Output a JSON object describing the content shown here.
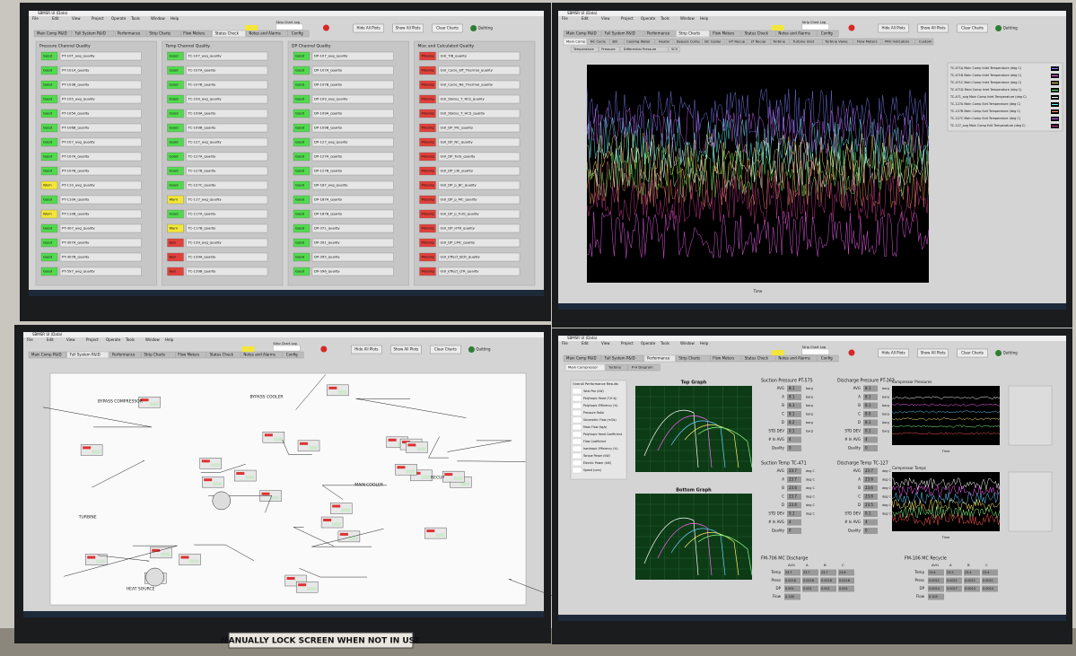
{
  "window_title": "SBMSR UI (Data)",
  "menu": [
    "File",
    "Edit",
    "View",
    "Project",
    "Operate",
    "Tools",
    "Window",
    "Help"
  ],
  "tabs": [
    "Main Comp P&ID",
    "Full System P&ID",
    "Performance",
    "Strip Charts",
    "Flow Meters",
    "Status Check",
    "Notes and Alarms",
    "Config"
  ],
  "buttons": [
    "Hide All Plots",
    "Show All Plots",
    "Clear Charts",
    "Quitting"
  ],
  "strip_chart_log": "Strip Chart Log",
  "sign": "MANUALLY LOCK SCREEN WHEN NOT IN USE",
  "screen1": {
    "panels": [
      {
        "title": "Pressure Channel Quality",
        "items": [
          {
            "name": "PT-10T_avg_quality",
            "status": "Good",
            "color": "#53d94f"
          },
          {
            "name": "PT-101A_quality",
            "status": "Good",
            "color": "#53d94f"
          },
          {
            "name": "PT-103B_quality",
            "status": "Good",
            "color": "#53d94f"
          },
          {
            "name": "PT-105_avg_quality",
            "status": "Good",
            "color": "#53d94f"
          },
          {
            "name": "PT-105A_quality",
            "status": "Good",
            "color": "#53d94f"
          },
          {
            "name": "PT-106B_quality",
            "status": "Good",
            "color": "#53d94f"
          },
          {
            "name": "PT-107_avg_quality",
            "status": "Good",
            "color": "#53d94f"
          },
          {
            "name": "PT-107A_quality",
            "status": "Good",
            "color": "#53d94f"
          },
          {
            "name": "PT-107B_quality",
            "status": "Good",
            "color": "#53d94f"
          },
          {
            "name": "PT-110_avg_quality",
            "status": "Warn",
            "color": "#f2e63a"
          },
          {
            "name": "PT-110A_quality",
            "status": "Good",
            "color": "#53d94f"
          },
          {
            "name": "PT-110B_quality",
            "status": "Warn",
            "color": "#f2e63a"
          },
          {
            "name": "PT-307_avg_quality",
            "status": "Good",
            "color": "#53d94f"
          },
          {
            "name": "PT-307A_quality",
            "status": "Good",
            "color": "#53d94f"
          },
          {
            "name": "PT-307B_quality",
            "status": "Good",
            "color": "#53d94f"
          },
          {
            "name": "PT-597_avg_quality",
            "status": "Good",
            "color": "#53d94f"
          }
        ]
      },
      {
        "title": "Temp Channel Quality",
        "items": [
          {
            "name": "TC-107_avg_quality",
            "status": "Good",
            "color": "#53d94f"
          },
          {
            "name": "TC-107A_quality",
            "status": "Good",
            "color": "#53d94f"
          },
          {
            "name": "TC-107B_quality",
            "status": "Good",
            "color": "#53d94f"
          },
          {
            "name": "TC-109_avg_quality",
            "status": "Good",
            "color": "#53d94f"
          },
          {
            "name": "TC-109A_quality",
            "status": "Good",
            "color": "#53d94f"
          },
          {
            "name": "TC-109B_quality",
            "status": "Good",
            "color": "#53d94f"
          },
          {
            "name": "TC-127_avg_quality",
            "status": "Good",
            "color": "#53d94f"
          },
          {
            "name": "TC-127A_quality",
            "status": "Good",
            "color": "#53d94f"
          },
          {
            "name": "TC-127B_quality",
            "status": "Good",
            "color": "#53d94f"
          },
          {
            "name": "TC-127C_quality",
            "status": "Good",
            "color": "#53d94f"
          },
          {
            "name": "TC-117_avg_quality",
            "status": "Warn",
            "color": "#f2e63a"
          },
          {
            "name": "TC-117A_quality",
            "status": "Good",
            "color": "#53d94f"
          },
          {
            "name": "TC-117B_quality",
            "status": "Warn",
            "color": "#f2e63a"
          },
          {
            "name": "TC-139_avg_quality",
            "status": "Bad",
            "color": "#e0413a"
          },
          {
            "name": "TC-139A_quality",
            "status": "Bad",
            "color": "#e0413a"
          },
          {
            "name": "TC-139B_quality",
            "status": "Bad",
            "color": "#e0413a"
          }
        ]
      },
      {
        "title": "DP Channel Quality",
        "items": [
          {
            "name": "DP-107_avg_quality",
            "status": "Good",
            "color": "#53d94f"
          },
          {
            "name": "DP-107A_quality",
            "status": "Good",
            "color": "#53d94f"
          },
          {
            "name": "DP-107B_quality",
            "status": "Good",
            "color": "#53d94f"
          },
          {
            "name": "DP-109_avg_quality",
            "status": "Good",
            "color": "#53d94f"
          },
          {
            "name": "DP-109A_quality",
            "status": "Good",
            "color": "#53d94f"
          },
          {
            "name": "DP-109B_quality",
            "status": "Good",
            "color": "#53d94f"
          },
          {
            "name": "DP-127_avg_quality",
            "status": "Good",
            "color": "#53d94f"
          },
          {
            "name": "DP-127A_quality",
            "status": "Good",
            "color": "#53d94f"
          },
          {
            "name": "DP-127B_quality",
            "status": "Good",
            "color": "#53d94f"
          },
          {
            "name": "DP-187_avg_quality",
            "status": "Good",
            "color": "#53d94f"
          },
          {
            "name": "DP-187A_quality",
            "status": "Good",
            "color": "#53d94f"
          },
          {
            "name": "DP-187B_quality",
            "status": "Good",
            "color": "#53d94f"
          },
          {
            "name": "DP-371_quality",
            "status": "Good",
            "color": "#53d94f"
          },
          {
            "name": "DP-391_quality",
            "status": "Good",
            "color": "#53d94f"
          },
          {
            "name": "DP-395_quality",
            "status": "Good",
            "color": "#53d94f"
          },
          {
            "name": "DP-396_quality",
            "status": "Good",
            "color": "#53d94f"
          }
        ]
      },
      {
        "title": "Misc and Calculated Quality",
        "items": [
          {
            "name": "GUI_TIB_quality",
            "status": "Missing",
            "color": "#e0413a"
          },
          {
            "name": "GUI_Cycle_Eff_Thermal_quality",
            "status": "Missing",
            "color": "#e0413a"
          },
          {
            "name": "GUI_Cycle_NE_Thermal_quality",
            "status": "Missing",
            "color": "#e0413a"
          },
          {
            "name": "GUI_Status_T_RCS_quality",
            "status": "Missing",
            "color": "#e0413a"
          },
          {
            "name": "GUI_Status_T_HCS_quality",
            "status": "Missing",
            "color": "#e0413a"
          },
          {
            "name": "GUI_DP_MC_quality",
            "status": "Missing",
            "color": "#e0413a"
          },
          {
            "name": "GUI_DP_NC_quality",
            "status": "Missing",
            "color": "#e0413a"
          },
          {
            "name": "GUI_DP_Turb_quality",
            "status": "Missing",
            "color": "#e0413a"
          },
          {
            "name": "GUI_DP_LRI_quality",
            "status": "Missing",
            "color": "#e0413a"
          },
          {
            "name": "GUI_DP_p_BC_quality",
            "status": "Missing",
            "color": "#e0413a"
          },
          {
            "name": "GUI_DP_p_MC_quality",
            "status": "Missing",
            "color": "#e0413a"
          },
          {
            "name": "GUI_DP_p_Turb_quality",
            "status": "Missing",
            "color": "#e0413a"
          },
          {
            "name": "GUI_DP_HTR_quality",
            "status": "Missing",
            "color": "#e0413a"
          },
          {
            "name": "GUI_DP_LMC_quality",
            "status": "Missing",
            "color": "#e0413a"
          },
          {
            "name": "GUI_Effect_BCR_quality",
            "status": "Missing",
            "color": "#e0413a"
          },
          {
            "name": "GUI_Effect_LTR_quality",
            "status": "Missing",
            "color": "#e0413a"
          }
        ]
      }
    ]
  },
  "screen2": {
    "subtabs": [
      "Main Comp",
      "NC Cycle",
      "Bill",
      "Cooling Water",
      "Heater",
      "Bypass Comp",
      "BC Cooler",
      "HT Recup",
      "LT Recup",
      "Turbine",
      "Turbine Inlet",
      "Turbine Valve",
      "Flow Meters",
      "PRV Indicators",
      "Custom"
    ],
    "views": [
      "Temperature",
      "Pressure",
      "Differential Pressure",
      "SCV"
    ],
    "x_label": "Time",
    "legend": [
      {
        "name": "TC-471A Main Comp Inlet Temperature (deg C)",
        "color": "#7f7fff"
      },
      {
        "name": "TC-471B Main Comp Inlet Temperature (deg C)",
        "color": "#ff66ff"
      },
      {
        "name": "TC-471C Main Comp Inlet Temperature (deg C)",
        "color": "#ffe066"
      },
      {
        "name": "TC-471D Main Comp Inlet Temperature (deg C)",
        "color": "#66ff66"
      },
      {
        "name": "TC-471_avg Main Comp Inlet Temperature (deg C)",
        "color": "#ffffff"
      },
      {
        "name": "TC-127A Main Comp Exit Temperature (deg C)",
        "color": "#66ffff"
      },
      {
        "name": "TC-127B Main Comp Exit Temperature (deg C)",
        "color": "#ff9966"
      },
      {
        "name": "TC-127C Main Comp Exit Temperature (deg C)",
        "color": "#cc66ff"
      },
      {
        "name": "TC-127_avg Main Comp Exit Temperature (deg C)",
        "color": "#e040a0"
      }
    ]
  },
  "screen3": {
    "labels": [
      "BYPASS COMPRESSOR",
      "BYPASS COOLER",
      "TURBINE",
      "MAIN COOLER",
      "RECUP",
      "HEAT SOURCE"
    ]
  },
  "screen4": {
    "subtabs": [
      "Main Compressor",
      "Turbine",
      "P-H Diagram"
    ],
    "perf_title": "Overall Performance Results",
    "perf_items": [
      "Total Pwr (kW)",
      "Polytropic Head (T-H kJ)",
      "Polytropic Efficiency (%)",
      "Pressure Ratio",
      "Volumetric Flow (m3/s)",
      "Mass Flow (kg/s)",
      "Polytropic Head Coefficient",
      "Flow Coefficient",
      "Isentropic Efficiency (%)",
      "Torque Power (kW)",
      "Electric Power (kW)",
      "Speed (rpm)"
    ],
    "graphs": [
      "Top Graph",
      "Bottom Graph"
    ],
    "stat_blocks": [
      {
        "title": "Suction Pressure PT-575",
        "unit": "barg",
        "rows": [
          [
            "AVG",
            "8.1"
          ],
          [
            "A",
            "8.1"
          ],
          [
            "B",
            "8.1"
          ],
          [
            "C",
            "8.1"
          ],
          [
            "D",
            "8.2"
          ],
          [
            "STD DEV",
            "0.1"
          ],
          [
            "# In AVG",
            "4"
          ],
          [
            "Quality",
            "0"
          ]
        ]
      },
      {
        "title": "Discharge Pressure PT-363",
        "unit": "barg",
        "rows": [
          [
            "AVG",
            "8.1"
          ],
          [
            "A",
            "8.1"
          ],
          [
            "B",
            "8.1"
          ],
          [
            "C",
            "8.0"
          ],
          [
            "D",
            "8.1"
          ],
          [
            "STD DEV",
            "0.1"
          ],
          [
            "# In AVG",
            "4"
          ],
          [
            "Quality",
            "0"
          ]
        ]
      },
      {
        "title": "Suction Temp TC-471",
        "unit": "deg C",
        "rows": [
          [
            "AVG",
            "23.7"
          ],
          [
            "A",
            "23.7"
          ],
          [
            "B",
            "23.6"
          ],
          [
            "C",
            "23.7"
          ],
          [
            "D",
            "23.6"
          ],
          [
            "STD DEV",
            "0.1"
          ],
          [
            "# In AVG",
            "4"
          ],
          [
            "Quality",
            "0"
          ]
        ]
      },
      {
        "title": "Discharge Temp TC-127",
        "unit": "deg C",
        "rows": [
          [
            "AVG",
            "23.7"
          ],
          [
            "A",
            "23.6"
          ],
          [
            "B",
            "23.6"
          ],
          [
            "C",
            "23.6"
          ],
          [
            "D",
            "23.5"
          ],
          [
            "STD DEV",
            "0.1"
          ],
          [
            "# In AVG",
            "4"
          ],
          [
            "Quality",
            "0"
          ]
        ]
      }
    ],
    "flow_blocks": [
      {
        "title": "FM-706 MC Discharge",
        "header": [
          "AVG",
          "A",
          "B",
          "C"
        ],
        "rows": [
          [
            "Temp",
            "23.7",
            "23.7",
            "23.7",
            "23.8"
          ],
          [
            "Press",
            "0.0218",
            "0.0218",
            "0.0218",
            "0.0218"
          ],
          [
            "DP",
            "0.001",
            "0.001",
            "0.001",
            "0.001"
          ],
          [
            "Flow",
            "0.138"
          ]
        ]
      },
      {
        "title": "FM-106 MC Recycle",
        "header": [
          "AVG",
          "A",
          "B",
          "C"
        ],
        "rows": [
          [
            "Temp",
            "23.4",
            "23.5",
            "23.4",
            "23.4"
          ],
          [
            "Press",
            "0.0021",
            "0.0021",
            "0.0021",
            "0.0021"
          ],
          [
            "DP",
            "0.0024",
            "0.0027",
            "0.0023",
            "0.0024"
          ],
          [
            "Flow",
            "0.103"
          ]
        ]
      }
    ],
    "strip_titles": [
      "Compressor Pressures",
      "Compressor Temps"
    ],
    "x_label": "Time"
  }
}
